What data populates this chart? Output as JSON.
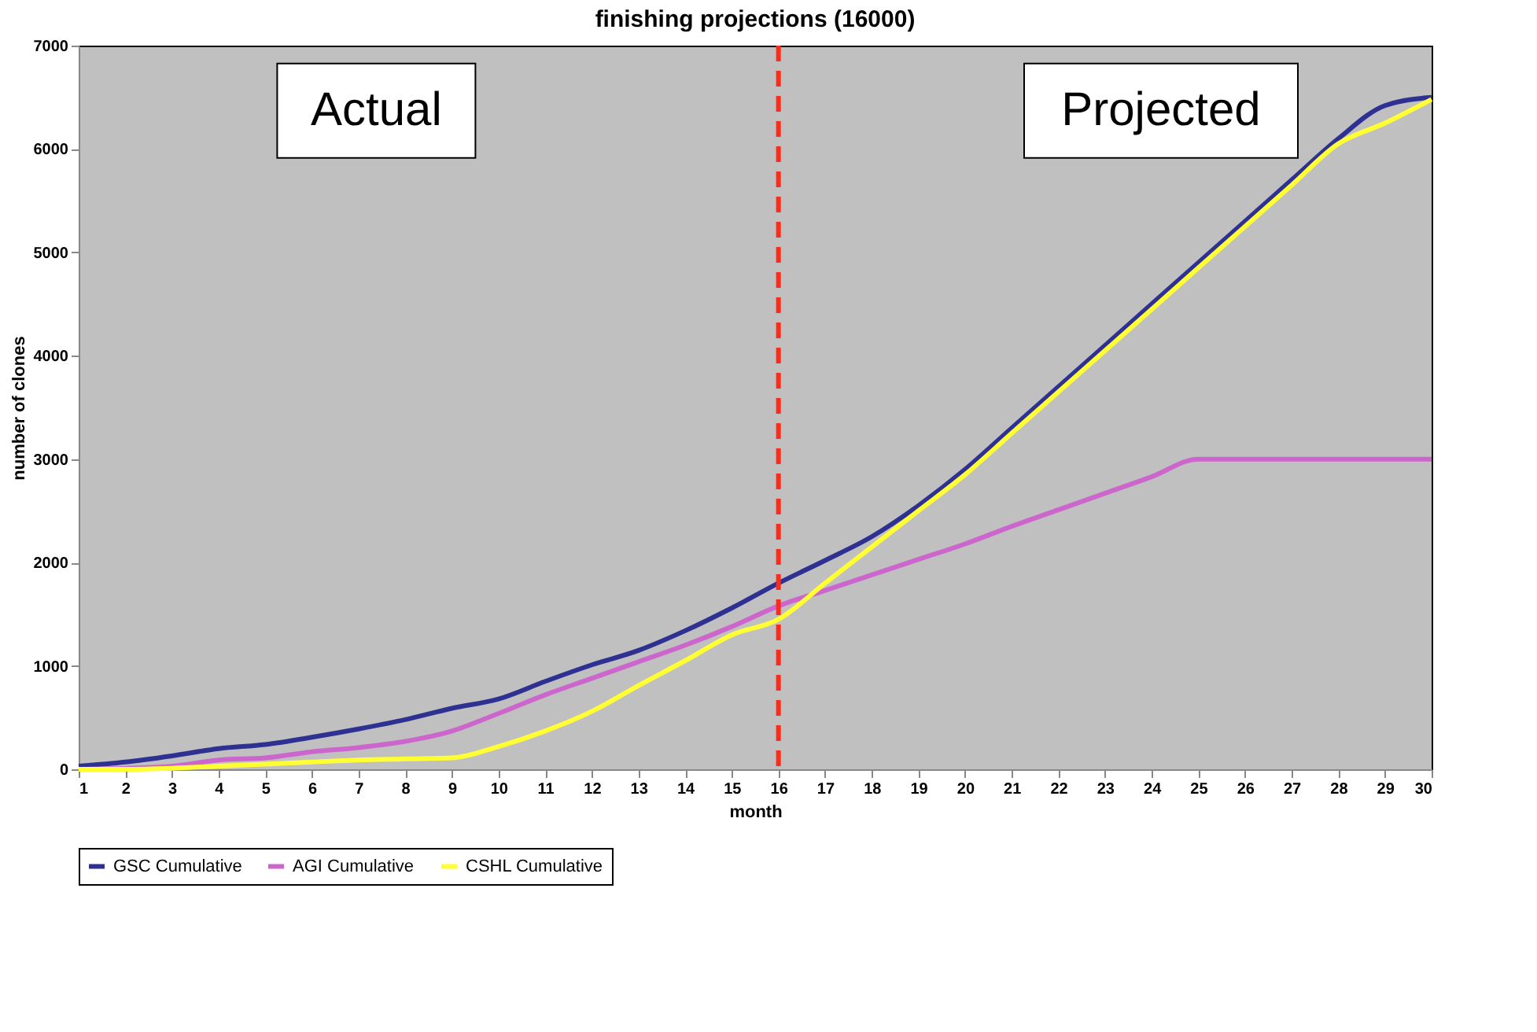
{
  "chart_data": {
    "type": "line",
    "title": "finishing projections (16000)",
    "xlabel": "month",
    "ylabel": "number of clones",
    "x": [
      1,
      2,
      3,
      4,
      5,
      6,
      7,
      8,
      9,
      10,
      11,
      12,
      13,
      14,
      15,
      16,
      17,
      18,
      19,
      20,
      21,
      22,
      23,
      24,
      25,
      26,
      27,
      28,
      29,
      30
    ],
    "series": [
      {
        "name": "GSC Cumulative",
        "color": "#2e3192",
        "values": [
          30,
          70,
          130,
          200,
          240,
          310,
          390,
          480,
          590,
          680,
          850,
          1010,
          1150,
          1340,
          1560,
          1800,
          2020,
          2250,
          2550,
          2900,
          3300,
          3700,
          4100,
          4500,
          4900,
          5300,
          5700,
          6100,
          6420,
          6500
        ]
      },
      {
        "name": "AGI Cumulative",
        "color": "#cc66cc",
        "values": [
          0,
          10,
          30,
          90,
          110,
          170,
          210,
          270,
          370,
          540,
          720,
          880,
          1040,
          1200,
          1380,
          1580,
          1730,
          1880,
          2030,
          2180,
          2350,
          2510,
          2670,
          2830,
          3000,
          3000,
          3000,
          3000,
          3000,
          3000
        ]
      },
      {
        "name": "CSHL Cumulative",
        "color": "#ffff33",
        "values": [
          0,
          0,
          10,
          30,
          50,
          70,
          90,
          100,
          110,
          220,
          370,
          560,
          810,
          1050,
          1300,
          1450,
          1800,
          2150,
          2500,
          2850,
          3250,
          3650,
          4050,
          4450,
          4850,
          5250,
          5650,
          6050,
          6250,
          6480
        ]
      }
    ],
    "xlim": [
      1,
      30
    ],
    "xticks": [
      1,
      2,
      3,
      4,
      5,
      6,
      7,
      8,
      9,
      10,
      11,
      12,
      13,
      14,
      15,
      16,
      17,
      18,
      19,
      20,
      21,
      22,
      23,
      24,
      25,
      26,
      27,
      28,
      29,
      30
    ],
    "ylim": [
      0,
      7000
    ],
    "yticks": [
      0,
      1000,
      2000,
      3000,
      4000,
      5000,
      6000,
      7000
    ],
    "ref_lines": [
      {
        "axis": "x",
        "value": 16,
        "color": "#ff2a1a",
        "line_style": "dashed"
      }
    ],
    "annotations": [
      "Actual",
      "Projected"
    ],
    "grid": false,
    "legend": "bottom",
    "marker": "none",
    "line_style": "solid"
  }
}
